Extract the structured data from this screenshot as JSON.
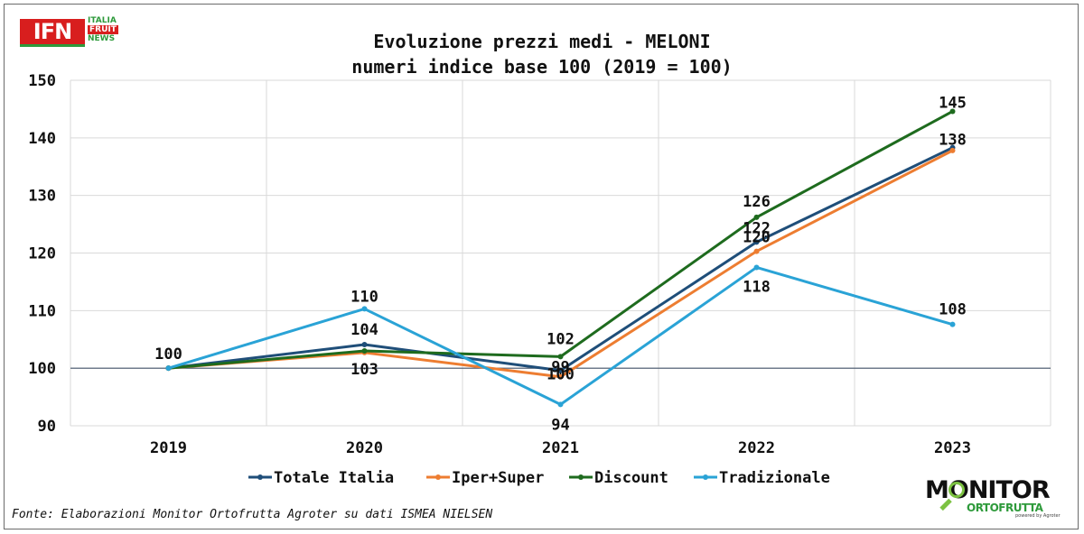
{
  "logos": {
    "ifn": {
      "mark": "IFN",
      "line1": "ITALIA",
      "line2": "FRUIT",
      "line3": "NEWS"
    },
    "monitor": {
      "word": "MONITOR",
      "sub": "ORTOFRUTTA",
      "tiny": "powered by Agroter"
    }
  },
  "source": "Fonte: Elaborazioni Monitor Ortofrutta Agroter su dati ISMEA NIELSEN",
  "chart_data": {
    "type": "line",
    "title": "Evoluzione prezzi medi - MELONI",
    "subtitle": "numeri indice base 100 (2019 = 100)",
    "xlabel": "",
    "ylabel": "",
    "categories": [
      "2019",
      "2020",
      "2021",
      "2022",
      "2023"
    ],
    "ylim": [
      90,
      150
    ],
    "yticks": [
      90,
      100,
      110,
      120,
      130,
      140,
      150
    ],
    "grid": true,
    "baseline": 100,
    "legend_position": "bottom",
    "series": [
      {
        "name": "Totale Italia",
        "color": "#1f4e79",
        "values": [
          100,
          104.1,
          99.6,
          121.9,
          138.3
        ],
        "labels": [
          null,
          "104",
          "100",
          "122",
          "138"
        ]
      },
      {
        "name": "Iper+Super",
        "color": "#ed7d31",
        "values": [
          100,
          102.7,
          98.5,
          120.3,
          137.8
        ],
        "labels": [
          null,
          "103",
          "99",
          "120",
          null
        ]
      },
      {
        "name": "Discount",
        "color": "#1e6b1e",
        "values": [
          100,
          103.0,
          102.0,
          126.2,
          144.6
        ],
        "labels": [
          null,
          null,
          "102",
          "126",
          "145"
        ]
      },
      {
        "name": "Tradizionale",
        "color": "#2aa3d6",
        "values": [
          100,
          110.3,
          93.7,
          117.5,
          107.6
        ],
        "labels": [
          "100",
          "110",
          "94",
          "118",
          "108"
        ]
      }
    ]
  }
}
